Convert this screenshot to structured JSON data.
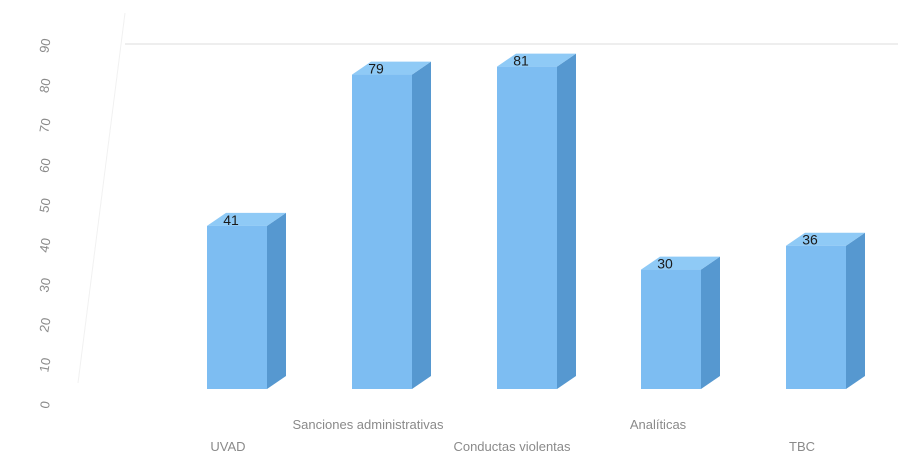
{
  "chart_data": {
    "type": "bar",
    "style": "3d",
    "categories": [
      "UVAD",
      "Sanciones administrativas",
      "Conductas violentas",
      "Analíticas",
      "TBC"
    ],
    "values": [
      41,
      79,
      81,
      30,
      36
    ],
    "data_labels": [
      "41",
      "79",
      "81",
      "30",
      "36"
    ],
    "y_ticks": [
      "0",
      "10",
      "20",
      "30",
      "40",
      "50",
      "60",
      "70",
      "80",
      "90"
    ],
    "ylim": [
      0,
      90
    ],
    "grid": false,
    "legend": "none",
    "title": "",
    "xlabel": "",
    "ylabel": ""
  },
  "colors": {
    "bar_front": "#7dbdf2",
    "bar_side": "#5698d0",
    "bar_top": "#8fcaf6",
    "axis_text": "#8a8a8a",
    "label_text": "#1a1a1a",
    "wall_line": "#dcdcdc"
  }
}
